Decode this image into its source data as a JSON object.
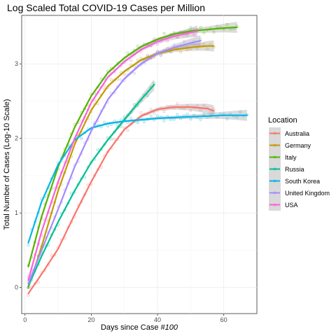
{
  "chart_data": {
    "type": "scatter",
    "title": "Log Scaled Total COVID-19 Cases per Million",
    "xlabel_prefix": "Days since Case ",
    "xlabel_emph": "#100",
    "ylabel": "Total Number of Cases (Log-10 Scale)",
    "xlim": [
      -1,
      70
    ],
    "ylim": [
      -0.35,
      3.65
    ],
    "x_ticks": [
      0,
      20,
      40,
      60
    ],
    "y_ticks": [
      0,
      1,
      2,
      3
    ],
    "grid": true,
    "legend_title": "Location",
    "legend_position": "right",
    "series": [
      {
        "name": "Australia",
        "color": "#F8766D",
        "x": [
          1,
          5,
          10,
          15,
          20,
          25,
          30,
          35,
          40,
          45,
          50,
          55,
          57
        ],
        "y": [
          -0.08,
          0.18,
          0.52,
          0.98,
          1.42,
          1.82,
          2.12,
          2.3,
          2.39,
          2.42,
          2.42,
          2.4,
          2.37
        ]
      },
      {
        "name": "Germany",
        "color": "#C49A00",
        "x": [
          1,
          5,
          10,
          15,
          20,
          25,
          30,
          35,
          40,
          45,
          50,
          55,
          57
        ],
        "y": [
          0.0,
          0.55,
          1.3,
          1.92,
          2.38,
          2.7,
          2.9,
          3.05,
          3.14,
          3.19,
          3.22,
          3.24,
          3.24
        ]
      },
      {
        "name": "Italy",
        "color": "#53B400",
        "x": [
          1,
          5,
          10,
          15,
          20,
          25,
          30,
          35,
          40,
          45,
          50,
          55,
          60,
          64
        ],
        "y": [
          0.28,
          0.95,
          1.62,
          2.15,
          2.57,
          2.88,
          3.08,
          3.23,
          3.33,
          3.4,
          3.44,
          3.46,
          3.48,
          3.49
        ]
      },
      {
        "name": "Russia",
        "color": "#00C094",
        "x": [
          1,
          5,
          10,
          15,
          20,
          25,
          30,
          35,
          39
        ],
        "y": [
          0.02,
          0.42,
          0.88,
          1.3,
          1.68,
          1.98,
          2.25,
          2.52,
          2.72
        ]
      },
      {
        "name": "South Korea",
        "color": "#00B6EB",
        "x": [
          1,
          5,
          10,
          15,
          20,
          25,
          30,
          35,
          40,
          45,
          50,
          55,
          60,
          67
        ],
        "y": [
          0.6,
          1.15,
          1.65,
          1.98,
          2.14,
          2.2,
          2.23,
          2.25,
          2.27,
          2.28,
          2.29,
          2.3,
          2.31,
          2.31
        ]
      },
      {
        "name": "United Kingdom",
        "color": "#A58AFF",
        "x": [
          1,
          5,
          10,
          15,
          20,
          25,
          30,
          35,
          40,
          45,
          50,
          53
        ],
        "y": [
          0.05,
          0.5,
          1.05,
          1.62,
          2.1,
          2.52,
          2.8,
          3.0,
          3.14,
          3.22,
          3.28,
          3.31
        ]
      },
      {
        "name": "USA",
        "color": "#FB61D7",
        "x": [
          1,
          5,
          10,
          15,
          20,
          25,
          30,
          35,
          40,
          45,
          50,
          52
        ],
        "y": [
          0.1,
          0.75,
          1.42,
          2.0,
          2.48,
          2.82,
          3.03,
          3.19,
          3.3,
          3.37,
          3.42,
          3.44
        ]
      }
    ]
  }
}
